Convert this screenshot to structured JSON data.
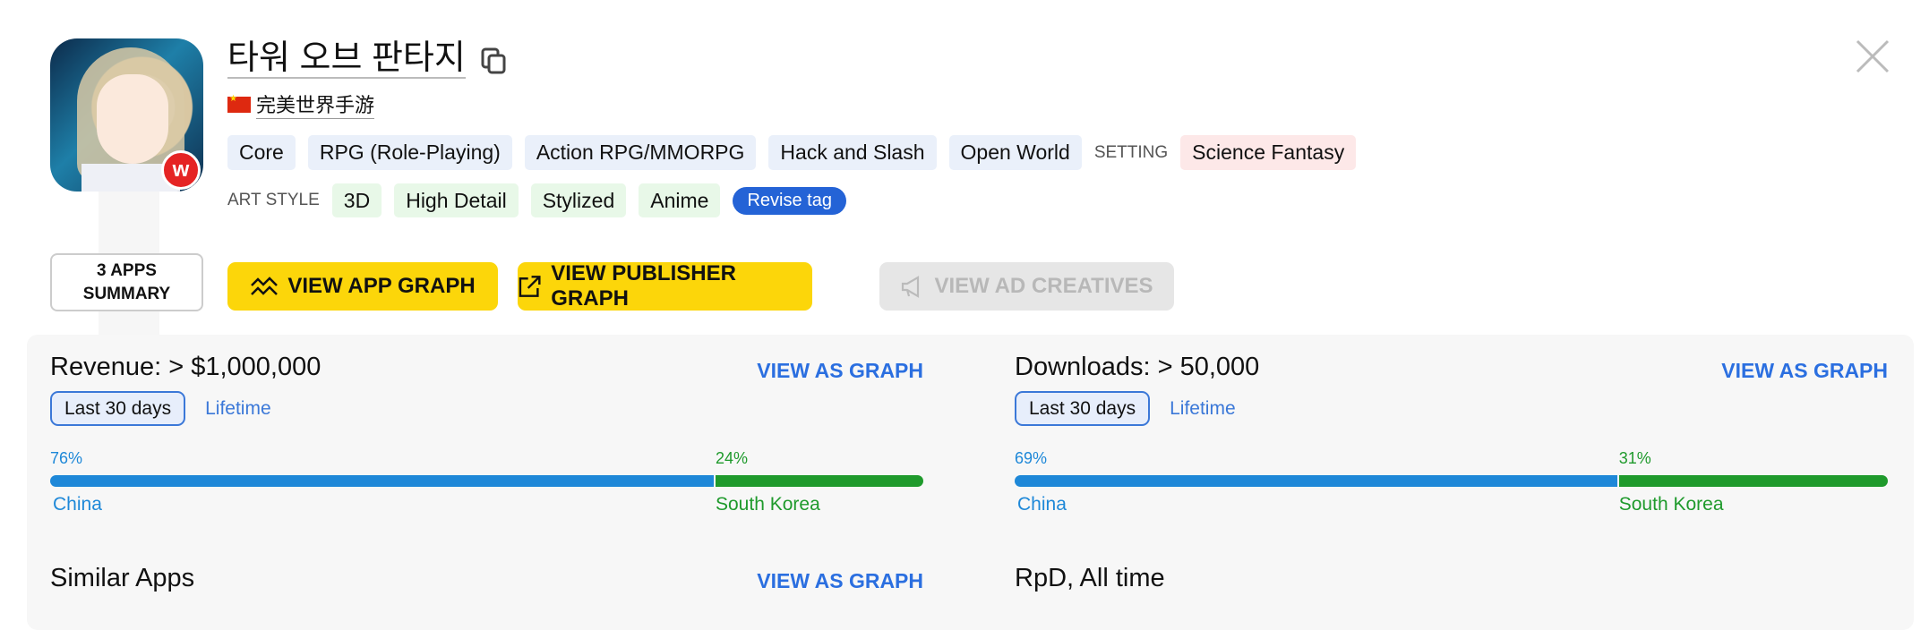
{
  "app": {
    "title": "타워 오브 판타지",
    "publisher": "完美世界手游",
    "publisher_country_flag": "china-flag-icon",
    "badge_icon": "publisher-logo-icon"
  },
  "tags": {
    "genre": [
      "Core",
      "RPG (Role-Playing)",
      "Action RPG/MMORPG",
      "Hack and Slash",
      "Open World"
    ],
    "setting_label": "SETTING",
    "setting": [
      "Science Fantasy"
    ],
    "art_style_label": "ART STYLE",
    "art_style": [
      "3D",
      "High Detail",
      "Stylized",
      "Anime"
    ],
    "revise_label": "Revise tag"
  },
  "actions": {
    "summary_line1": "3 APPS",
    "summary_line2": "SUMMARY",
    "app_graph": "VIEW APP GRAPH",
    "publisher_graph": "VIEW PUBLISHER GRAPH",
    "ad_creatives": "VIEW AD CREATIVES"
  },
  "revenue": {
    "title": "Revenue: > $1,000,000",
    "view": "VIEW AS GRAPH",
    "tab_active": "Last 30 days",
    "tab_other": "Lifetime",
    "split": [
      {
        "country": "China",
        "pct": "76%",
        "value": 76,
        "color": "#1e88d8"
      },
      {
        "country": "South Korea",
        "pct": "24%",
        "value": 24,
        "color": "#1f9a2c"
      }
    ]
  },
  "downloads": {
    "title": "Downloads: > 50,000",
    "view": "VIEW AS GRAPH",
    "tab_active": "Last 30 days",
    "tab_other": "Lifetime",
    "split": [
      {
        "country": "China",
        "pct": "69%",
        "value": 69,
        "color": "#1e88d8"
      },
      {
        "country": "South Korea",
        "pct": "31%",
        "value": 31,
        "color": "#1f9a2c"
      }
    ]
  },
  "similar": {
    "title": "Similar Apps",
    "view": "VIEW AS GRAPH"
  },
  "rpd": {
    "title": "RpD, All time"
  },
  "colors": {
    "accent": "#fcd60a",
    "link": "#2b6fe0",
    "revise": "#2463d6"
  }
}
